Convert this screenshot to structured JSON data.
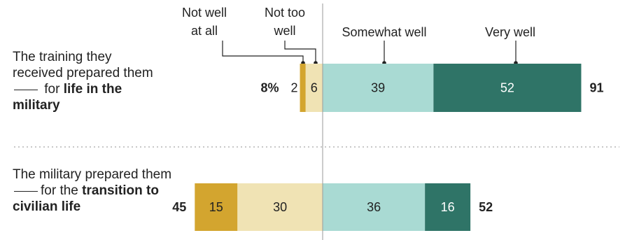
{
  "chart_data": {
    "type": "bar",
    "subtype": "diverging-stacked",
    "legend": [
      "Not well at all",
      "Not too well",
      "Somewhat well",
      "Very well"
    ],
    "colors": {
      "Not well at all": "#d3a52f",
      "Not too well": "#f0e3b4",
      "Somewhat well": "#a9dad3",
      "Very well": "#2f7467"
    },
    "categories": [
      {
        "label_pre": "The training they received prepared them",
        "label_mid": "for",
        "label_bold": "life in the military",
        "negative": [
          {
            "series": "Not too well",
            "value": 6
          },
          {
            "series": "Not well at all",
            "value": 2
          }
        ],
        "positive": [
          {
            "series": "Somewhat well",
            "value": 39
          },
          {
            "series": "Very well",
            "value": 52
          }
        ],
        "net_negative": "8%",
        "net_positive": "91"
      },
      {
        "label_pre": "The military prepared them",
        "label_mid": "for the",
        "label_bold": "transition to civilian life",
        "negative": [
          {
            "series": "Not too well",
            "value": 30
          },
          {
            "series": "Not well at all",
            "value": 15
          }
        ],
        "positive": [
          {
            "series": "Somewhat well",
            "value": 36
          },
          {
            "series": "Very well",
            "value": 16
          }
        ],
        "net_negative": "45",
        "net_positive": "52"
      }
    ]
  },
  "legend_labels": {
    "not_well_at_all_1": "Not well",
    "not_well_at_all_2": "at all",
    "not_too_well_1": "Not too",
    "not_too_well_2": "well",
    "somewhat_well": "Somewhat well",
    "very_well": "Very well"
  }
}
